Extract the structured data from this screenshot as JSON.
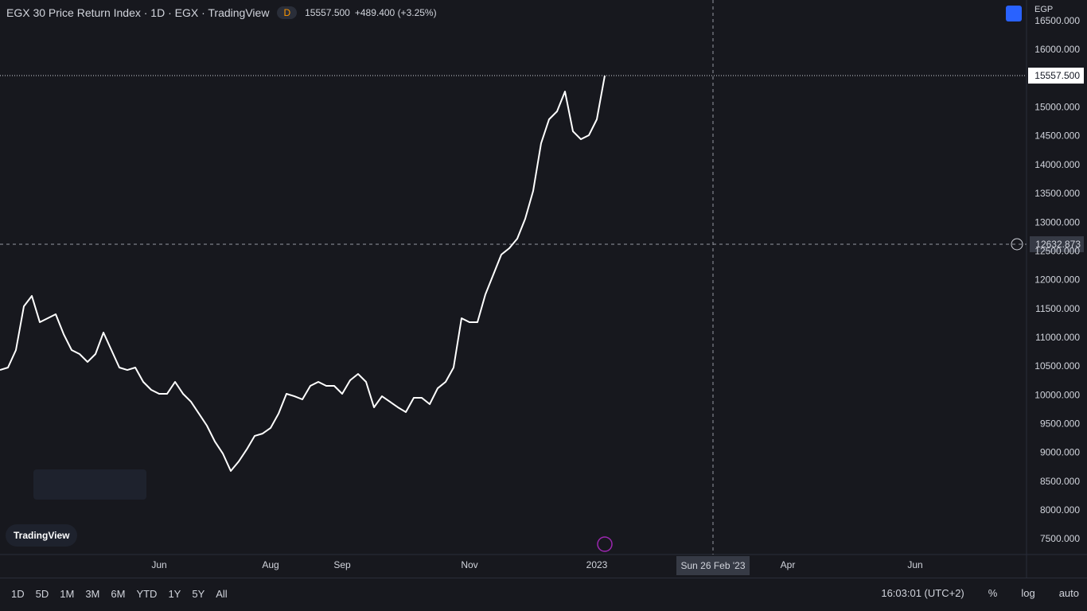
{
  "header": {
    "title": "EGX 30 Price Return Index · 1D · EGX · TradingView",
    "interval_badge": "D",
    "price": "15557.500",
    "change": "+489.400 (+3.25%)",
    "currency": "EGP"
  },
  "chart_data": {
    "type": "line",
    "color": "#ffffff",
    "categories": [
      null,
      null,
      null,
      null,
      null,
      null,
      null,
      null,
      null,
      null,
      null,
      null,
      null,
      null,
      null,
      null,
      null,
      null,
      null,
      null,
      "Jun",
      null,
      null,
      null,
      null,
      null,
      null,
      null,
      null,
      null,
      null,
      null,
      null,
      null,
      "Aug",
      null,
      null,
      null,
      null,
      null,
      null,
      null,
      null,
      "Sep",
      null,
      null,
      null,
      null,
      null,
      null,
      null,
      null,
      null,
      null,
      null,
      null,
      null,
      null,
      null,
      "Nov",
      null,
      null,
      null,
      null,
      null,
      null,
      null,
      null,
      null,
      null,
      null,
      null,
      null,
      null,
      null,
      "2023",
      null,
      null,
      null,
      null,
      null,
      null,
      null,
      null,
      null,
      null,
      null,
      null,
      null,
      null,
      null,
      null,
      null,
      null,
      null,
      null,
      null,
      null,
      null,
      "Apr",
      null,
      null,
      null,
      null,
      null,
      null,
      null,
      null,
      null,
      null,
      null,
      null,
      null,
      null,
      null,
      "Jun",
      null,
      null,
      null,
      null,
      null,
      null,
      null,
      null,
      null,
      null,
      null,
      null,
      null
    ],
    "values": [
      10444,
      10486,
      10790,
      11550,
      11730,
      11274,
      11343,
      11412,
      11066,
      10790,
      10721,
      10583,
      10721,
      11094,
      10790,
      10486,
      10444,
      10486,
      10237,
      10099,
      10030,
      10030,
      10237,
      10030,
      9892,
      9685,
      9477,
      9201,
      8993,
      8689,
      8855,
      9063,
      9298,
      9339,
      9436,
      9685,
      10030,
      9988,
      9933,
      10168,
      10237,
      10168,
      10168,
      10030,
      10265,
      10375,
      10237,
      9795,
      9988,
      9892,
      9795,
      9712,
      9961,
      9961,
      9850,
      10126,
      10237,
      10486,
      11343,
      11274,
      11274,
      11758,
      12103,
      12448,
      12559,
      12725,
      13070,
      13554,
      14383,
      14798,
      14936,
      15281,
      14590,
      14452,
      14521,
      14798,
      15557.5,
      null,
      null,
      null,
      null,
      null,
      null,
      null,
      null,
      null,
      null,
      null,
      null,
      null,
      null,
      null,
      null,
      null,
      null,
      null,
      null,
      null,
      null,
      null,
      null,
      null,
      null,
      null,
      null,
      null,
      null,
      null,
      null,
      null,
      null,
      null,
      null,
      null,
      null,
      null,
      null,
      null,
      null,
      null,
      null,
      null,
      null,
      null,
      null,
      null,
      null,
      null,
      null
    ],
    "ylim": [
      7238,
      16871
    ],
    "yticks": [
      {
        "value": 7500,
        "label": "7500.000"
      },
      {
        "value": 8000,
        "label": "8000.000"
      },
      {
        "value": 8500,
        "label": "8500.000"
      },
      {
        "value": 9000,
        "label": "9000.000"
      },
      {
        "value": 9500,
        "label": "9500.000"
      },
      {
        "value": 10000,
        "label": "10000.000"
      },
      {
        "value": 10500,
        "label": "10500.000"
      },
      {
        "value": 11000,
        "label": "11000.000"
      },
      {
        "value": 11500,
        "label": "11500.000"
      },
      {
        "value": 12000,
        "label": "12000.000"
      },
      {
        "value": 12500,
        "label": "12500.000"
      },
      {
        "value": 13000,
        "label": "13000.000"
      },
      {
        "value": 13500,
        "label": "13500.000"
      },
      {
        "value": 14000,
        "label": "14000.000"
      },
      {
        "value": 14500,
        "label": "14500.000"
      },
      {
        "value": 15000,
        "label": "15000.000"
      },
      {
        "value": 15500,
        "label": "15500.000"
      },
      {
        "value": 16000,
        "label": "16000.000"
      },
      {
        "value": 16500,
        "label": "16500.000"
      }
    ],
    "crosshair": {
      "price_label": "12632.873",
      "date_label": "Sun 26 Feb '23"
    }
  },
  "logo": "TradingView",
  "toolbar": {
    "ranges": [
      "1D",
      "5D",
      "1M",
      "3M",
      "6M",
      "YTD",
      "1Y",
      "5Y",
      "All"
    ],
    "clock": "16:03:01 (UTC+2)",
    "options": [
      "%",
      "log",
      "auto"
    ]
  }
}
